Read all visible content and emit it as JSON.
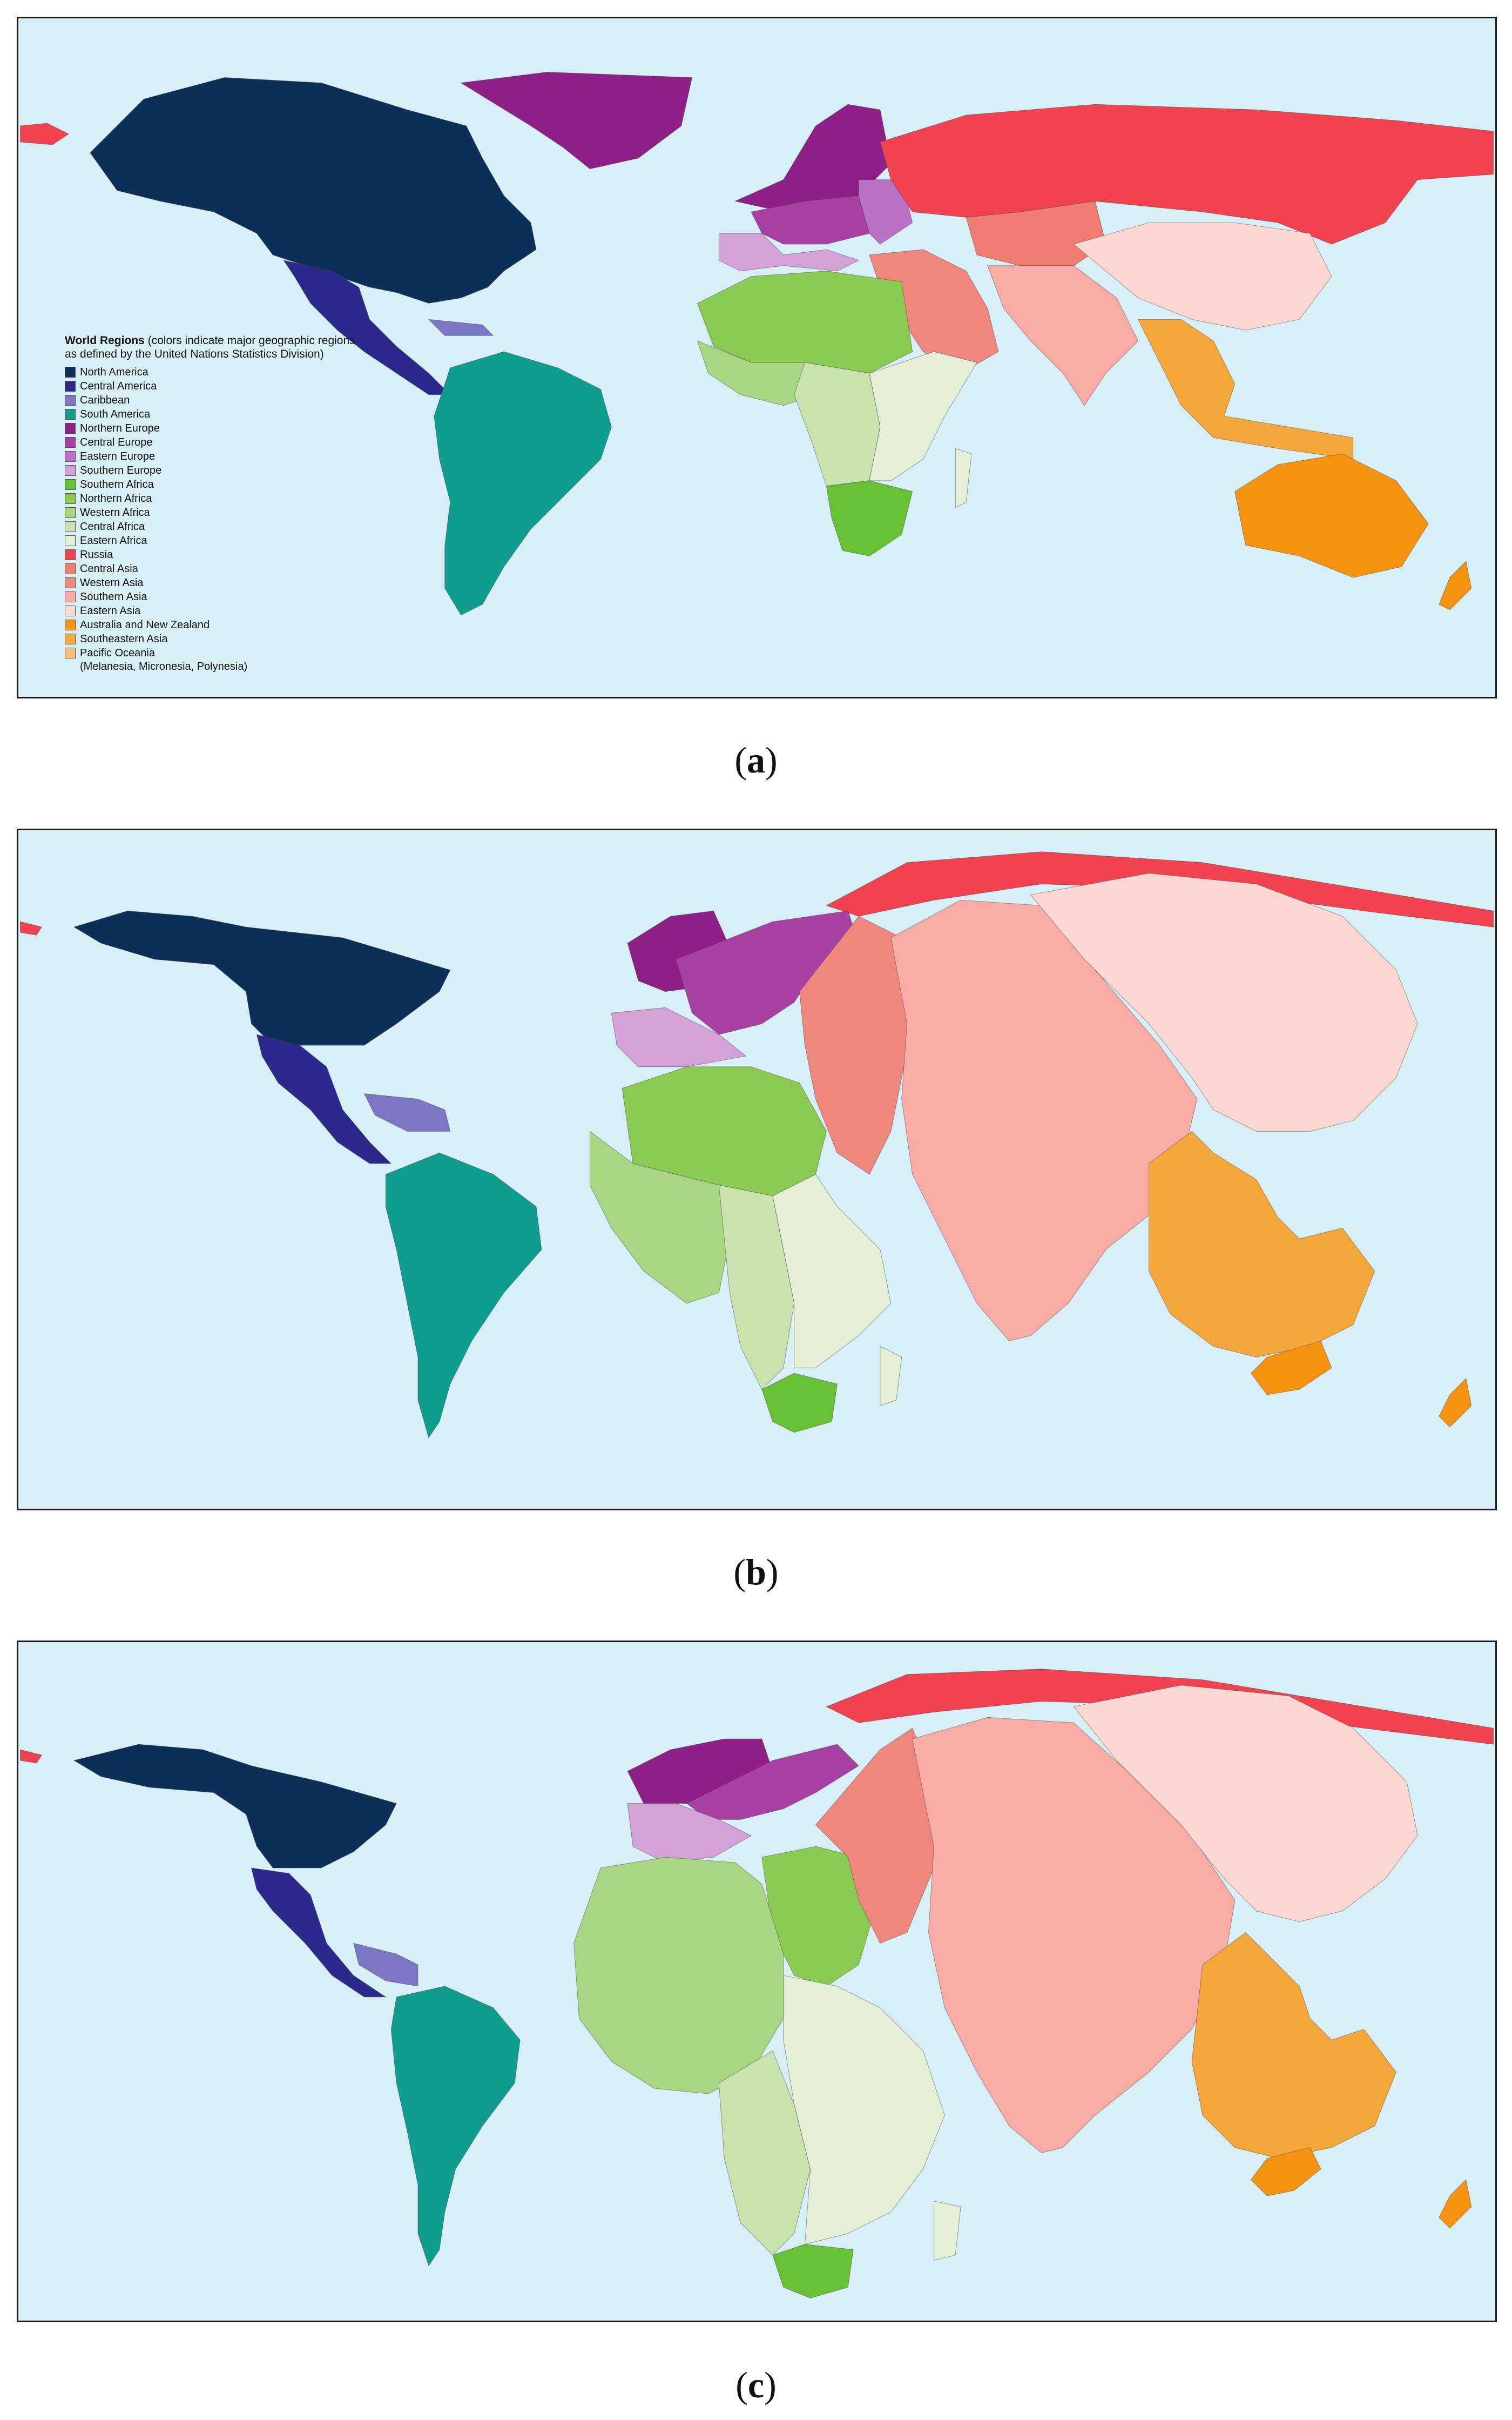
{
  "legend": {
    "title_bold": "World Regions",
    "title_rest": " (colors indicate major geographic regions as defined by the United Nations Statistics Division)",
    "items": [
      {
        "label": "North America",
        "color": "#0b2f57"
      },
      {
        "label": "Central America",
        "color": "#2b2a8c"
      },
      {
        "label": "Caribbean",
        "color": "#7b77c4"
      },
      {
        "label": "South America",
        "color": "#0f9d8f"
      },
      {
        "label": "Northern Europe",
        "color": "#8e1f86"
      },
      {
        "label": "Central Europe",
        "color": "#a742a4"
      },
      {
        "label": "Eastern Europe",
        "color": "#bb72c6"
      },
      {
        "label": "Southern Europe",
        "color": "#d4a2d6"
      },
      {
        "label": "Southern Africa",
        "color": "#66c232"
      },
      {
        "label": "Northern Africa",
        "color": "#8ccb52"
      },
      {
        "label": "Western Africa",
        "color": "#a9d683"
      },
      {
        "label": "Central Africa",
        "color": "#c8e3ad"
      },
      {
        "label": "Eastern Africa",
        "color": "#e3f0d8"
      },
      {
        "label": "Russia",
        "color": "#f2414f"
      },
      {
        "label": "Central Asia",
        "color": "#f27c72"
      },
      {
        "label": "Western Asia",
        "color": "#f0877f"
      },
      {
        "label": "Southern Asia",
        "color": "#f9aca3"
      },
      {
        "label": "Eastern Asia",
        "color": "#fdd8d2"
      },
      {
        "label": "Australia and New Zealand",
        "color": "#f69411"
      },
      {
        "label": "Southeastern Asia",
        "color": "#f6a739"
      },
      {
        "label": "Pacific Oceania",
        "color": "#f7be7b"
      }
    ],
    "pacific_sub": "(Melanesia, Micronesia, Polynesia)"
  },
  "captions": {
    "a": "a",
    "b": "b",
    "c": "c"
  },
  "colors": {
    "ocean": "#d9eff7",
    "border": "#1a1a1a"
  }
}
